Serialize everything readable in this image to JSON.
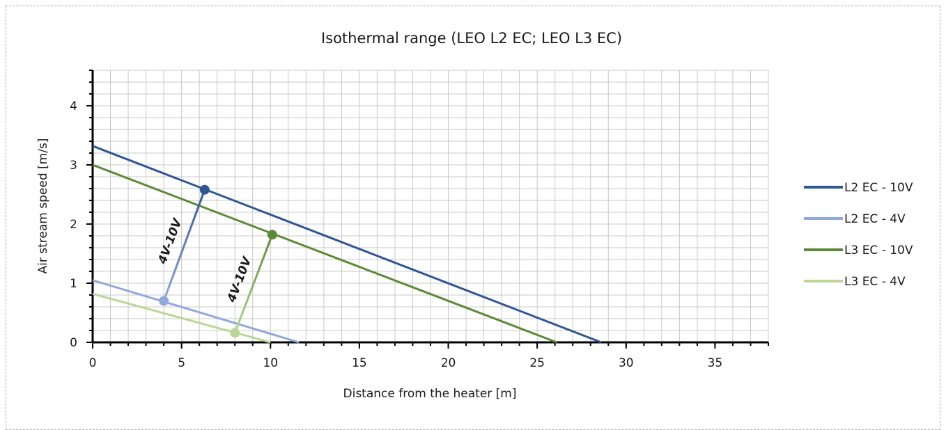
{
  "chart_data": {
    "type": "line",
    "title": "Isothermal range (LEO L2 EC; LEO L3 EC)",
    "xlabel": "Distance from the heater [m]",
    "ylabel": "Air stream speed [m/s]",
    "xlim": [
      0,
      38
    ],
    "ylim": [
      0,
      4.6
    ],
    "x_ticks": [
      0,
      5,
      10,
      15,
      20,
      25,
      30,
      35
    ],
    "y_ticks": [
      0,
      1,
      2,
      3,
      4
    ],
    "x_minor_step": 1,
    "y_minor_step": 0.2,
    "grid": true,
    "legend_position": "right",
    "series": [
      {
        "name": "L2 EC - 10V",
        "color": "#2e5695",
        "x": [
          0,
          28.6
        ],
        "y": [
          3.32,
          0
        ],
        "marker": {
          "x": 6.3,
          "y": 2.58
        }
      },
      {
        "name": "L2 EC - 4V",
        "color": "#8ea9db",
        "x": [
          0,
          11.6
        ],
        "y": [
          1.05,
          0
        ],
        "marker": {
          "x": 4.0,
          "y": 0.7
        }
      },
      {
        "name": "L3 EC - 10V",
        "color": "#5b8a35",
        "x": [
          0,
          26.1
        ],
        "y": [
          3.0,
          0
        ],
        "marker": {
          "x": 10.1,
          "y": 1.82
        }
      },
      {
        "name": "L3 EC - 4V",
        "color": "#b9d795",
        "x": [
          0,
          10.0
        ],
        "y": [
          0.82,
          0
        ],
        "marker": {
          "x": 8.0,
          "y": 0.16
        }
      }
    ],
    "annotations": [
      {
        "text": "4V-10V",
        "from_series": 1,
        "to_series": 0
      },
      {
        "text": "4V-10V",
        "from_series": 3,
        "to_series": 2
      }
    ]
  }
}
